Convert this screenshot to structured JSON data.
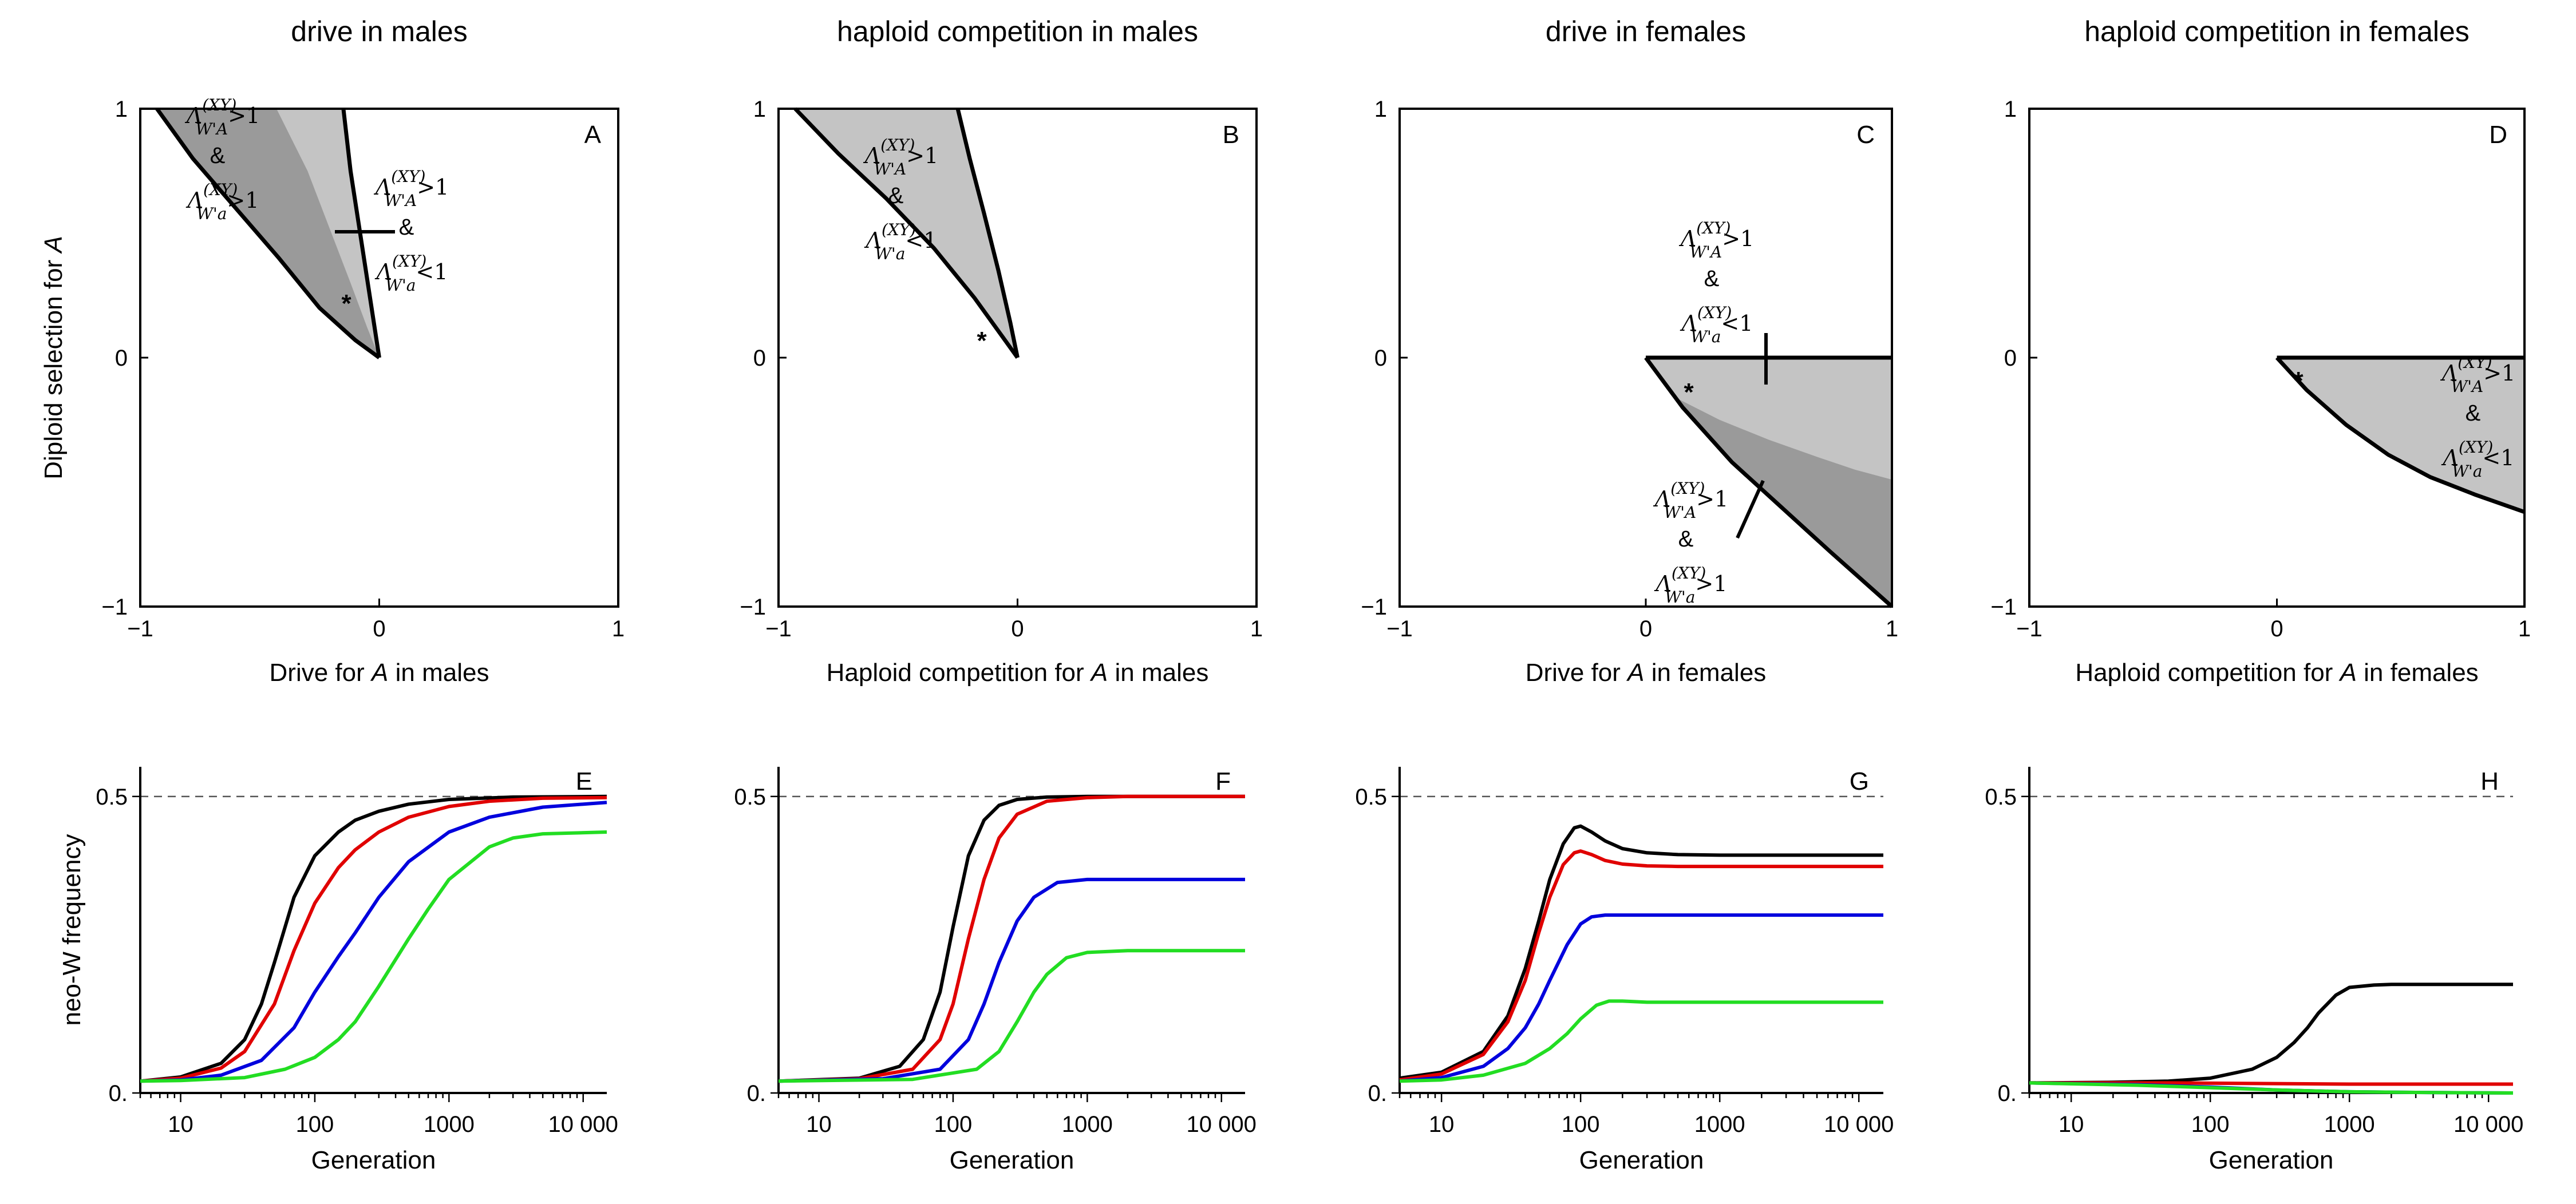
{
  "chart_data": [
    {
      "id": "A",
      "type": "area",
      "title": "drive in males",
      "panel_label": "A",
      "xlabel_pre": "Drive for ",
      "xlabel_it": "A",
      "xlabel_post": " in males",
      "ylabel_pre": "Diploid selection for ",
      "ylabel_it": "A",
      "xlim": [
        -1,
        1
      ],
      "ylim": [
        -1,
        1
      ],
      "xticks": [
        "−1",
        "0",
        "1"
      ],
      "yticks": [
        "−1",
        "0",
        "1"
      ],
      "regions": [
        {
          "shade": "#9a9a9a",
          "boundary_left": {
            "x": [
              -0.93,
              -0.78,
              -0.6,
              -0.42,
              -0.25,
              -0.1,
              0
            ],
            "y": [
              1,
              0.8,
              0.6,
              0.4,
              0.2,
              0.07,
              0
            ]
          }
        },
        {
          "shade": "#c4c4c4",
          "boundary_left": {
            "x": [
              -0.43,
              -0.3,
              -0.2,
              -0.12,
              -0.05,
              0
            ],
            "y": [
              1,
              0.75,
              0.5,
              0.3,
              0.12,
              0
            ]
          },
          "boundary_right": {
            "x": [
              -0.15,
              -0.12,
              -0.08,
              -0.04,
              0
            ],
            "y": [
              1,
              0.75,
              0.5,
              0.25,
              0
            ]
          }
        }
      ],
      "annotations": [
        {
          "lambda_sub": "W'A",
          "op": ">1",
          "amp": "&",
          "lambda_sub2": "W'a",
          "op2": ">1"
        },
        {
          "lambda_sub": "W'A",
          "op": ">1",
          "amp": "&",
          "lambda_sub2": "W'a",
          "op2": "<1"
        },
        {
          "star": "*"
        }
      ]
    },
    {
      "id": "B",
      "type": "area",
      "title": "haploid competition in males",
      "panel_label": "B",
      "xlabel_pre": "Haploid competition for ",
      "xlabel_it": "A",
      "xlabel_post": " in males",
      "xlim": [
        -1,
        1
      ],
      "ylim": [
        -1,
        1
      ],
      "xticks": [
        "−1",
        "0",
        "1"
      ],
      "yticks": [
        "−1",
        "0",
        "1"
      ],
      "regions": [
        {
          "shade": "#c4c4c4",
          "boundary_left": {
            "x": [
              -0.93,
              -0.75,
              -0.55,
              -0.35,
              -0.18,
              -0.06,
              0
            ],
            "y": [
              1,
              0.82,
              0.64,
              0.44,
              0.24,
              0.08,
              0
            ]
          },
          "boundary_right": {
            "x": [
              -0.25,
              -0.2,
              -0.14,
              -0.08,
              -0.03,
              0
            ],
            "y": [
              1,
              0.8,
              0.58,
              0.35,
              0.14,
              0
            ]
          }
        }
      ],
      "annotations": [
        {
          "lambda_sub": "W'A",
          "op": ">1",
          "amp": "&",
          "lambda_sub2": "W'a",
          "op2": "<1"
        },
        {
          "star": "*"
        }
      ]
    },
    {
      "id": "C",
      "type": "area",
      "title": "drive in females",
      "panel_label": "C",
      "xlabel_pre": "Drive for ",
      "xlabel_it": "A",
      "xlabel_post": " in females",
      "xlim": [
        -1,
        1
      ],
      "ylim": [
        -1,
        1
      ],
      "xticks": [
        "−1",
        "0",
        "1"
      ],
      "yticks": [
        "−1",
        "0",
        "1"
      ],
      "regions": [
        {
          "shade": "#c4c4c4",
          "boundary_top": {
            "x": [
              0,
              1
            ],
            "y": [
              0,
              0
            ]
          }
        },
        {
          "shade": "#9a9a9a",
          "boundary_upper": {
            "x": [
              0.12,
              0.3,
              0.5,
              0.7,
              0.85,
              1
            ],
            "y": [
              -0.16,
              -0.25,
              -0.33,
              -0.4,
              -0.45,
              -0.49
            ]
          },
          "boundary_lower": {
            "x": [
              0,
              0.15,
              0.35,
              0.55,
              0.75,
              1
            ],
            "y": [
              0,
              -0.2,
              -0.42,
              -0.6,
              -0.78,
              -1
            ]
          }
        }
      ],
      "annotations": [
        {
          "lambda_sub": "W'A",
          "op": ">1",
          "amp": "&",
          "lambda_sub2": "W'a",
          "op2": "<1"
        },
        {
          "lambda_sub": "W'A",
          "op": ">1",
          "amp": "&",
          "lambda_sub2": "W'a",
          "op2": ">1"
        },
        {
          "star": "*"
        }
      ]
    },
    {
      "id": "D",
      "type": "area",
      "title": "haploid competition in females",
      "panel_label": "D",
      "xlabel_pre": "Haploid competition for ",
      "xlabel_it": "A",
      "xlabel_post": " in females",
      "xlim": [
        -1,
        1
      ],
      "ylim": [
        -1,
        1
      ],
      "xticks": [
        "−1",
        "0",
        "1"
      ],
      "yticks": [
        "−1",
        "0",
        "1"
      ],
      "regions": [
        {
          "shade": "#c4c4c4",
          "boundary_lower": {
            "x": [
              0,
              0.12,
              0.28,
              0.45,
              0.62,
              0.8,
              1
            ],
            "y": [
              0,
              -0.13,
              -0.27,
              -0.39,
              -0.48,
              -0.55,
              -0.62
            ]
          }
        }
      ],
      "annotations": [
        {
          "lambda_sub": "W'A",
          "op": ">1",
          "amp": "&",
          "lambda_sub2": "W'a",
          "op2": "<1"
        },
        {
          "star": "*"
        }
      ]
    },
    {
      "id": "E",
      "type": "line",
      "panel_label": "E",
      "xlabel": "Generation",
      "ylabel": "neo-W frequency",
      "xscale": "log",
      "xlim": [
        5,
        15000
      ],
      "ylim": [
        0,
        0.55
      ],
      "xticks": [
        {
          "v": 10,
          "t": "10"
        },
        {
          "v": 100,
          "t": "100"
        },
        {
          "v": 1000,
          "t": "1000"
        },
        {
          "v": 10000,
          "t": "10 000"
        }
      ],
      "yticks": [
        {
          "v": 0,
          "t": "0."
        },
        {
          "v": 0.5,
          "t": "0.5"
        }
      ],
      "reference_line": 0.5,
      "series": [
        {
          "color": "#000000",
          "x": [
            5,
            10,
            20,
            30,
            40,
            50,
            70,
            100,
            150,
            200,
            300,
            500,
            1000,
            3000,
            15000
          ],
          "y": [
            0.02,
            0.027,
            0.05,
            0.09,
            0.15,
            0.22,
            0.33,
            0.4,
            0.44,
            0.46,
            0.475,
            0.487,
            0.495,
            0.499,
            0.5
          ]
        },
        {
          "color": "#e00000",
          "x": [
            5,
            10,
            20,
            30,
            50,
            70,
            100,
            150,
            200,
            300,
            500,
            1000,
            2000,
            5000,
            15000
          ],
          "y": [
            0.02,
            0.025,
            0.042,
            0.07,
            0.15,
            0.24,
            0.32,
            0.38,
            0.41,
            0.44,
            0.465,
            0.483,
            0.492,
            0.497,
            0.498
          ]
        },
        {
          "color": "#0000dd",
          "x": [
            5,
            10,
            20,
            40,
            70,
            100,
            150,
            200,
            300,
            500,
            1000,
            2000,
            5000,
            15000
          ],
          "y": [
            0.02,
            0.022,
            0.03,
            0.055,
            0.11,
            0.17,
            0.23,
            0.27,
            0.33,
            0.39,
            0.44,
            0.465,
            0.482,
            0.49
          ]
        },
        {
          "color": "#22dd22",
          "x": [
            5,
            10,
            30,
            60,
            100,
            150,
            200,
            300,
            500,
            700,
            1000,
            2000,
            3000,
            5000,
            15000
          ],
          "y": [
            0.02,
            0.021,
            0.026,
            0.04,
            0.06,
            0.09,
            0.12,
            0.18,
            0.26,
            0.31,
            0.36,
            0.415,
            0.43,
            0.437,
            0.44
          ]
        }
      ]
    },
    {
      "id": "F",
      "type": "line",
      "panel_label": "F",
      "xlabel": "Generation",
      "xscale": "log",
      "xlim": [
        5,
        15000
      ],
      "ylim": [
        0,
        0.55
      ],
      "xticks": [
        {
          "v": 10,
          "t": "10"
        },
        {
          "v": 100,
          "t": "100"
        },
        {
          "v": 1000,
          "t": "1000"
        },
        {
          "v": 10000,
          "t": "10 000"
        }
      ],
      "yticks": [
        {
          "v": 0,
          "t": "0."
        },
        {
          "v": 0.5,
          "t": "0.5"
        }
      ],
      "reference_line": 0.5,
      "series": [
        {
          "color": "#000000",
          "x": [
            5,
            20,
            40,
            60,
            80,
            100,
            130,
            170,
            220,
            300,
            500,
            1000,
            15000
          ],
          "y": [
            0.02,
            0.025,
            0.045,
            0.09,
            0.17,
            0.28,
            0.4,
            0.46,
            0.485,
            0.495,
            0.499,
            0.5,
            0.5
          ]
        },
        {
          "color": "#e00000",
          "x": [
            5,
            20,
            50,
            80,
            100,
            130,
            170,
            220,
            300,
            500,
            1000,
            2000,
            15000
          ],
          "y": [
            0.02,
            0.024,
            0.04,
            0.09,
            0.15,
            0.26,
            0.36,
            0.43,
            0.47,
            0.492,
            0.498,
            0.5,
            0.5
          ]
        },
        {
          "color": "#0000dd",
          "x": [
            5,
            30,
            80,
            130,
            170,
            220,
            300,
            400,
            600,
            1000,
            2000,
            15000
          ],
          "y": [
            0.02,
            0.024,
            0.04,
            0.09,
            0.15,
            0.22,
            0.29,
            0.33,
            0.355,
            0.36,
            0.36,
            0.36
          ]
        },
        {
          "color": "#22dd22",
          "x": [
            5,
            50,
            150,
            220,
            300,
            400,
            500,
            700,
            1000,
            2000,
            15000
          ],
          "y": [
            0.02,
            0.023,
            0.04,
            0.07,
            0.12,
            0.17,
            0.2,
            0.228,
            0.237,
            0.24,
            0.24
          ]
        }
      ]
    },
    {
      "id": "G",
      "type": "line",
      "panel_label": "G",
      "xlabel": "Generation",
      "xscale": "log",
      "xlim": [
        5,
        15000
      ],
      "ylim": [
        0,
        0.55
      ],
      "xticks": [
        {
          "v": 10,
          "t": "10"
        },
        {
          "v": 100,
          "t": "100"
        },
        {
          "v": 1000,
          "t": "1000"
        },
        {
          "v": 10000,
          "t": "10 000"
        }
      ],
      "yticks": [
        {
          "v": 0,
          "t": "0."
        },
        {
          "v": 0.5,
          "t": "0.5"
        }
      ],
      "reference_line": 0.5,
      "series": [
        {
          "color": "#000000",
          "x": [
            5,
            10,
            20,
            30,
            40,
            50,
            60,
            75,
            90,
            100,
            120,
            150,
            200,
            300,
            500,
            1000,
            15000
          ],
          "y": [
            0.025,
            0.035,
            0.07,
            0.13,
            0.21,
            0.29,
            0.36,
            0.42,
            0.447,
            0.45,
            0.44,
            0.425,
            0.412,
            0.405,
            0.402,
            0.401,
            0.401
          ]
        },
        {
          "color": "#e00000",
          "x": [
            5,
            10,
            20,
            30,
            40,
            50,
            60,
            75,
            90,
            100,
            120,
            150,
            200,
            300,
            500,
            1000,
            15000
          ],
          "y": [
            0.022,
            0.032,
            0.065,
            0.12,
            0.19,
            0.27,
            0.33,
            0.385,
            0.405,
            0.408,
            0.402,
            0.392,
            0.386,
            0.383,
            0.382,
            0.382,
            0.382
          ]
        },
        {
          "color": "#0000dd",
          "x": [
            5,
            10,
            20,
            30,
            40,
            50,
            60,
            80,
            100,
            120,
            150,
            200,
            500,
            15000
          ],
          "y": [
            0.02,
            0.026,
            0.045,
            0.075,
            0.11,
            0.15,
            0.19,
            0.25,
            0.285,
            0.297,
            0.3,
            0.3,
            0.3,
            0.3
          ]
        },
        {
          "color": "#22dd22",
          "x": [
            5,
            10,
            20,
            40,
            60,
            80,
            100,
            130,
            160,
            200,
            300,
            500,
            15000
          ],
          "y": [
            0.02,
            0.022,
            0.03,
            0.05,
            0.075,
            0.1,
            0.125,
            0.148,
            0.155,
            0.155,
            0.153,
            0.153,
            0.153
          ]
        }
      ]
    },
    {
      "id": "H",
      "type": "line",
      "panel_label": "H",
      "xlabel": "Generation",
      "xscale": "log",
      "xlim": [
        5,
        15000
      ],
      "ylim": [
        0,
        0.55
      ],
      "xticks": [
        {
          "v": 10,
          "t": "10"
        },
        {
          "v": 100,
          "t": "100"
        },
        {
          "v": 1000,
          "t": "1000"
        },
        {
          "v": 10000,
          "t": "10 000"
        }
      ],
      "yticks": [
        {
          "v": 0,
          "t": "0."
        },
        {
          "v": 0.5,
          "t": "0.5"
        }
      ],
      "reference_line": 0.5,
      "series": [
        {
          "color": "#000000",
          "x": [
            5,
            20,
            50,
            100,
            200,
            300,
            400,
            500,
            600,
            800,
            1000,
            1500,
            2000,
            15000
          ],
          "y": [
            0.017,
            0.018,
            0.02,
            0.025,
            0.04,
            0.06,
            0.085,
            0.11,
            0.135,
            0.165,
            0.178,
            0.182,
            0.183,
            0.183
          ]
        },
        {
          "color": "#e00000",
          "x": [
            5,
            50,
            200,
            1000,
            15000
          ],
          "y": [
            0.017,
            0.017,
            0.016,
            0.015,
            0.015
          ]
        },
        {
          "color": "#0000dd",
          "x": [
            5,
            30,
            100,
            300,
            1000,
            3000,
            15000
          ],
          "y": [
            0.017,
            0.014,
            0.01,
            0.005,
            0.002,
            0.001,
            0.0
          ]
        },
        {
          "color": "#22dd22",
          "x": [
            5,
            30,
            100,
            300,
            1000,
            3000,
            15000
          ],
          "y": [
            0.017,
            0.013,
            0.009,
            0.005,
            0.002,
            0.001,
            0.0
          ]
        }
      ]
    }
  ]
}
